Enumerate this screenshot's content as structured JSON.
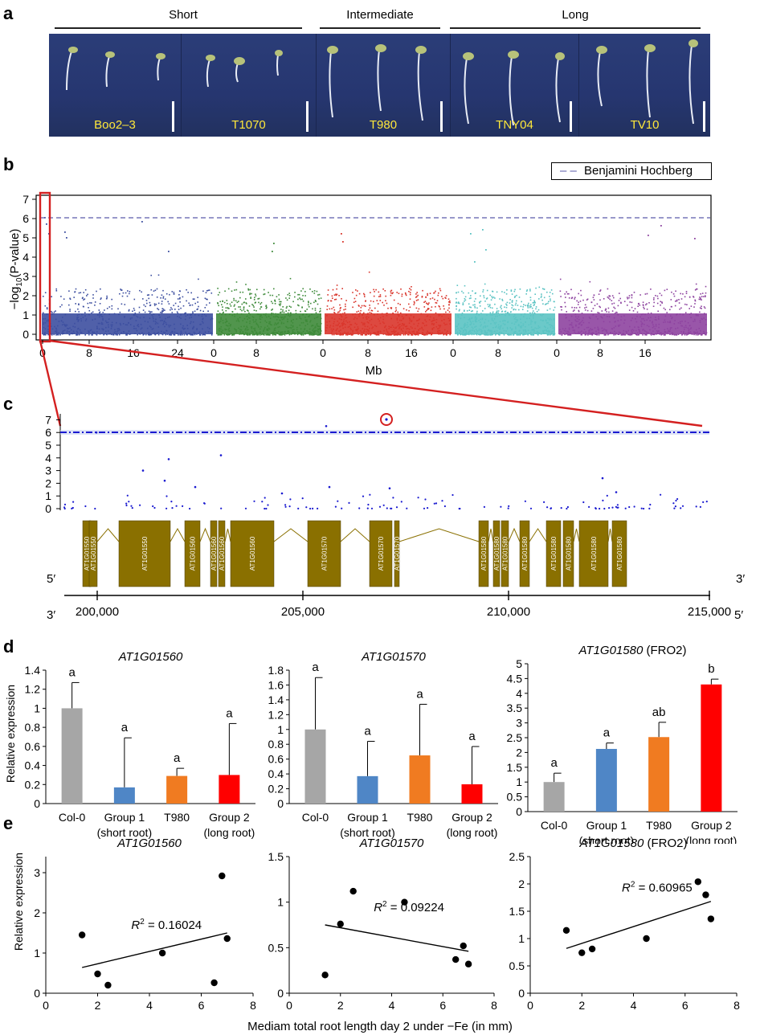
{
  "panel_a": {
    "label": "a",
    "groups": [
      "Short",
      "Intermediate",
      "Long"
    ],
    "accessions": [
      "Boo2–3",
      "T1070",
      "T980",
      "TNY04",
      "TV10"
    ]
  },
  "panel_b": {
    "label": "b",
    "legend": "Benjamini Hochberg",
    "ylabel_prefix": "−log",
    "ylabel_sub": "10",
    "ylabel_suffix": "(P-value)",
    "xlabel": "Mb",
    "yticks": [
      "0",
      "1",
      "2",
      "3",
      "4",
      "5",
      "6",
      "7"
    ],
    "xticks": [
      "0",
      "8",
      "16",
      "24",
      "0",
      "8",
      "0",
      "8",
      "16",
      "0",
      "8",
      "0",
      "8",
      "16"
    ],
    "chrom_colors": [
      "#3d4fa0",
      "#3e8a3a",
      "#d9352b",
      "#5bc3c3",
      "#8e44a0"
    ],
    "threshold_color": "#5a5aaa",
    "highlight_color": "#d42020"
  },
  "panel_c": {
    "label": "c",
    "yticks": [
      "0",
      "1",
      "2",
      "3",
      "4",
      "5",
      "6",
      "7"
    ],
    "genes": [
      "AT1G01550",
      "AT1G01550",
      "AT1G01550",
      "AT1G01560",
      "AT1G01560",
      "AT1G01560",
      "AT1G01560",
      "AT1G01570",
      "AT1G01570",
      "AT1G01570",
      "AT1G01580",
      "AT1G01580",
      "AT1G01580",
      "AT1G01580",
      "AT1G01580",
      "AT1G01580",
      "AT1G01580",
      "AT1G01580"
    ],
    "end_left_top": "5′",
    "end_right_top": "3′",
    "end_left_bottom": "3′",
    "end_right_bottom": "5′",
    "axis_ticks": [
      "200,000",
      "205,000",
      "210,000",
      "215,000"
    ],
    "gene_color": "#8a7000",
    "dot_color": "#1a1ad0"
  },
  "panel_d": {
    "label": "d",
    "ylabel": "Relative expression",
    "charts": [
      {
        "title": "AT1G01560",
        "title_suffix": "",
        "yticks": [
          "0",
          "0.2",
          "0.4",
          "0.6",
          "0.8",
          "1",
          "1.2",
          "1.4"
        ],
        "ymax": 1.4
      },
      {
        "title": "AT1G01570",
        "title_suffix": "",
        "yticks": [
          "0",
          "0.2",
          "0.4",
          "0.6",
          "0.8",
          "1",
          "1.2",
          "1.4",
          "1.6",
          "1.8"
        ],
        "ymax": 1.8
      },
      {
        "title": "AT1G01580",
        "title_suffix": " (FRO2)",
        "yticks": [
          "0",
          "0.5",
          "1",
          "1.5",
          "2",
          "2.5",
          "3",
          "3.5",
          "4",
          "4.5",
          "5"
        ],
        "ymax": 5
      }
    ],
    "categories": [
      {
        "line1": "Col-0",
        "line2": ""
      },
      {
        "line1": "Group 1",
        "line2": "(short root)"
      },
      {
        "line1": "T980",
        "line2": ""
      },
      {
        "line1": "Group 2",
        "line2": "(long root)"
      }
    ],
    "bar_colors": [
      "#a6a6a6",
      "#4f86c6",
      "#f07b21",
      "#ff0000"
    ]
  },
  "panel_e": {
    "label": "e",
    "ylabel": "Relative expression",
    "xlabel": "Mediam total root length day 2 under −Fe (in mm)",
    "xticks": [
      "0",
      "2",
      "4",
      "6",
      "8"
    ],
    "charts": [
      {
        "title": "AT1G01560",
        "title_suffix": "",
        "r2_prefix": "R",
        "r2_value": " = 0.16024",
        "yticks": [
          "0",
          "1",
          "2",
          "3"
        ]
      },
      {
        "title": "AT1G01570",
        "title_suffix": "",
        "r2_prefix": "R",
        "r2_value": " = 0.09224",
        "yticks": [
          "0",
          "0.5",
          "1",
          "1.5"
        ]
      },
      {
        "title": "AT1G01580",
        "title_suffix": " (FRO2)",
        "r2_prefix": "R",
        "r2_value": " = 0.60965",
        "yticks": [
          "0",
          "0.5",
          "1",
          "1.5",
          "2",
          "2.5"
        ]
      }
    ]
  },
  "chart_data": [
    {
      "type": "bar",
      "title": "AT1G01560",
      "ylabel": "Relative expression",
      "categories": [
        "Col-0",
        "Group 1 (short root)",
        "T980",
        "Group 2 (long root)"
      ],
      "values": [
        1.0,
        0.17,
        0.29,
        0.3
      ],
      "errors": [
        0.27,
        0.52,
        0.08,
        0.54
      ],
      "letters": [
        "a",
        "a",
        "a",
        "a"
      ],
      "ylim": [
        0,
        1.4
      ]
    },
    {
      "type": "bar",
      "title": "AT1G01570",
      "ylabel": "Relative expression",
      "categories": [
        "Col-0",
        "Group 1 (short root)",
        "T980",
        "Group 2 (long root)"
      ],
      "values": [
        1.0,
        0.37,
        0.65,
        0.26
      ],
      "errors": [
        0.7,
        0.47,
        0.69,
        0.51
      ],
      "letters": [
        "a",
        "a",
        "a",
        "a"
      ],
      "ylim": [
        0,
        1.8
      ]
    },
    {
      "type": "bar",
      "title": "AT1G01580 (FRO2)",
      "ylabel": "Relative expression",
      "categories": [
        "Col-0",
        "Group 1 (short root)",
        "T980",
        "Group 2 (long root)"
      ],
      "values": [
        1.0,
        2.12,
        2.52,
        4.3
      ],
      "errors": [
        0.3,
        0.2,
        0.5,
        0.18
      ],
      "letters": [
        "a",
        "a",
        "ab",
        "b"
      ],
      "ylim": [
        0,
        5
      ]
    },
    {
      "type": "scatter",
      "title": "AT1G01560",
      "xlabel": "Mediam total root length day 2 under −Fe (in mm)",
      "ylabel": "Relative expression",
      "x": [
        1.4,
        2.0,
        2.4,
        4.5,
        6.5,
        6.8,
        7.0
      ],
      "y": [
        1.45,
        0.48,
        0.2,
        1.0,
        0.26,
        2.92,
        1.36
      ],
      "trend": [
        [
          1.4,
          0.64
        ],
        [
          7.0,
          1.5
        ]
      ],
      "xlim": [
        0,
        8
      ],
      "ylim": [
        0,
        3.4
      ]
    },
    {
      "type": "scatter",
      "title": "AT1G01570",
      "xlabel": "Mediam total root length day 2 under −Fe (in mm)",
      "ylabel": "Relative expression",
      "x": [
        1.4,
        2.0,
        2.5,
        4.5,
        6.5,
        6.8,
        7.0
      ],
      "y": [
        0.2,
        0.76,
        1.12,
        1.0,
        0.37,
        0.52,
        0.32
      ],
      "trend": [
        [
          1.4,
          0.75
        ],
        [
          7.0,
          0.46
        ]
      ],
      "xlim": [
        0,
        8
      ],
      "ylim": [
        0,
        1.5
      ]
    },
    {
      "type": "scatter",
      "title": "AT1G01580 (FRO2)",
      "xlabel": "Mediam total root length day 2 under −Fe (in mm)",
      "ylabel": "Relative expression",
      "x": [
        1.4,
        2.0,
        2.4,
        4.5,
        6.5,
        6.8,
        7.0
      ],
      "y": [
        1.15,
        0.74,
        0.81,
        1.0,
        2.04,
        1.8,
        1.36
      ],
      "trend": [
        [
          1.4,
          0.82
        ],
        [
          7.0,
          1.68
        ]
      ],
      "xlim": [
        0,
        8
      ],
      "ylim": [
        0,
        2.5
      ]
    }
  ]
}
